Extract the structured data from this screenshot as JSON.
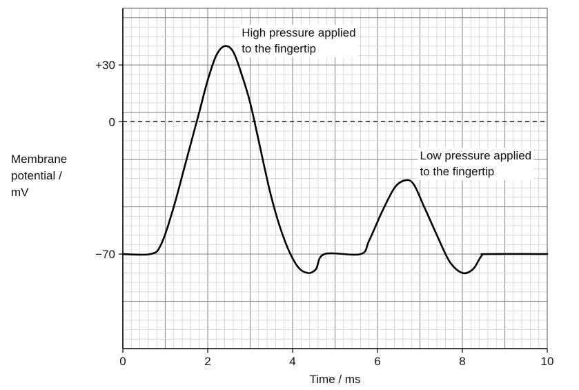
{
  "chart_data": {
    "type": "line",
    "title": "",
    "xlabel": "Time / ms",
    "ylabel_lines": [
      "Membrane",
      "potential /",
      "mV"
    ],
    "xlim": [
      0,
      10
    ],
    "ylim": [
      -120,
      60
    ],
    "grid": true,
    "x_ticks": [
      {
        "value": 0,
        "label": "0"
      },
      {
        "value": 2,
        "label": "2"
      },
      {
        "value": 4,
        "label": "4"
      },
      {
        "value": 6,
        "label": "6"
      },
      {
        "value": 8,
        "label": "8"
      },
      {
        "value": 10,
        "label": "10"
      }
    ],
    "y_ticks": [
      {
        "value": 30,
        "label": "+30"
      },
      {
        "value": 0,
        "label": "0"
      },
      {
        "value": -70,
        "label": "−70"
      }
    ],
    "reference_line": {
      "y": 0,
      "style": "dashed"
    },
    "series": [
      {
        "points": [
          [
            0,
            -70
          ],
          [
            0.65,
            -70
          ],
          [
            0.9,
            -65
          ],
          [
            1.2,
            -45
          ],
          [
            1.5,
            -20
          ],
          [
            1.8,
            5
          ],
          [
            2.0,
            22
          ],
          [
            2.2,
            35
          ],
          [
            2.4,
            40
          ],
          [
            2.6,
            37
          ],
          [
            2.8,
            25
          ],
          [
            3.0,
            10
          ],
          [
            3.2,
            -10
          ],
          [
            3.5,
            -40
          ],
          [
            3.8,
            -62
          ],
          [
            4.1,
            -76
          ],
          [
            4.35,
            -80
          ],
          [
            4.55,
            -78
          ],
          [
            4.75,
            -70
          ],
          [
            5.6,
            -70
          ],
          [
            5.8,
            -63
          ],
          [
            6.1,
            -48
          ],
          [
            6.4,
            -35
          ],
          [
            6.65,
            -31
          ],
          [
            6.85,
            -33
          ],
          [
            7.1,
            -45
          ],
          [
            7.4,
            -60
          ],
          [
            7.7,
            -74
          ],
          [
            8.0,
            -80
          ],
          [
            8.25,
            -78
          ],
          [
            8.45,
            -71
          ],
          [
            8.6,
            -70
          ],
          [
            10,
            -70
          ]
        ]
      }
    ],
    "annotations": [
      {
        "lines": [
          "High pressure applied",
          "to the fingertip"
        ],
        "x": 2.8,
        "y": 45
      },
      {
        "lines": [
          "Low pressure applied",
          "to the fingertip"
        ],
        "x": 7.0,
        "y": -20
      }
    ]
  }
}
